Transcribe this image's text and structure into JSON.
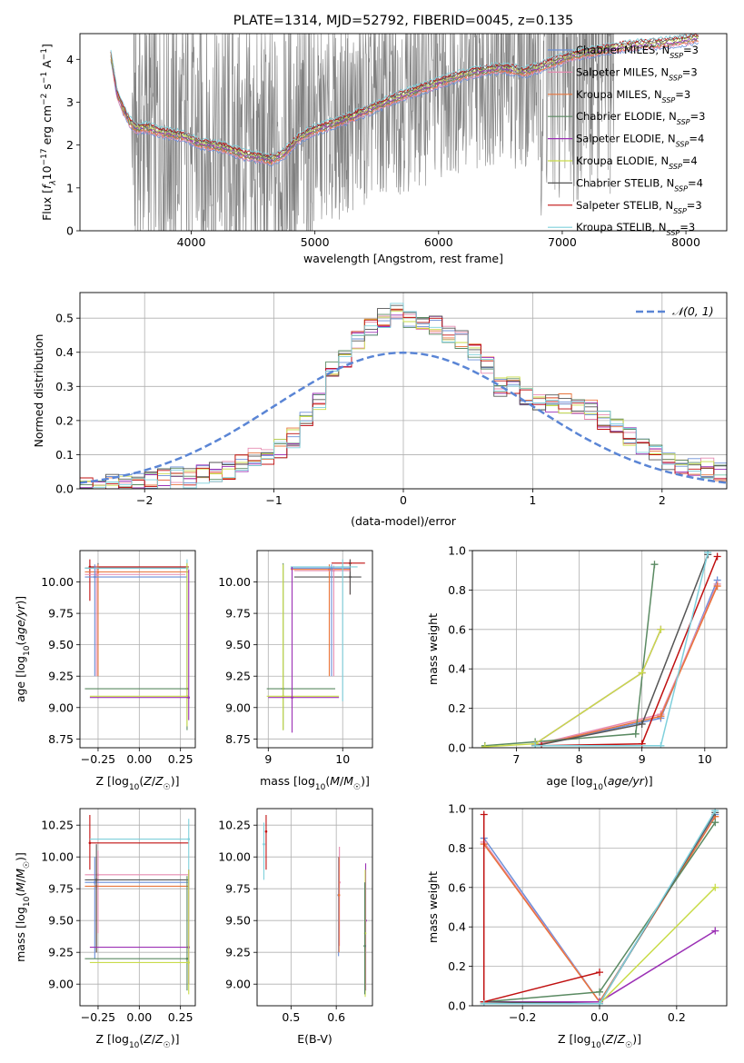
{
  "colors": {
    "Chabrier MILES": "#6a8fd8",
    "Salpeter MILES": "#e68bb1",
    "Kroupa MILES": "#e8743b",
    "Chabrier ELODIE": "#5a8a62",
    "Salpeter ELODIE": "#9b30b5",
    "Kroupa ELODIE": "#c9dc4a",
    "Chabrier STELIB": "#555555",
    "Salpeter STELIB": "#c01010",
    "Kroupa STELIB": "#7fd0dc",
    "data": "#808080",
    "normal": "#5a85d5"
  },
  "chart_data": [
    {
      "id": "spectrum",
      "type": "line",
      "title": "PLATE=1314, MJD=52792, FIBERID=0045, z=0.135",
      "xlabel": "wavelength [Angstrom, rest frame]",
      "ylabel": "Flux [f_λ 10^-17 erg cm^-2 s^-1 A^-1]",
      "xlim": [
        3100,
        8330
      ],
      "ylim": [
        0,
        4.6
      ],
      "xticks": [
        4000,
        5000,
        6000,
        7000,
        8000
      ],
      "yticks": [
        0,
        1,
        2,
        3,
        4
      ],
      "legend_position": "upper right",
      "legend": [
        {
          "model": "Chabrier MILES",
          "base": "Chabrier MILES, N",
          "sub": "SSP",
          "tail": "=3"
        },
        {
          "model": "Salpeter MILES",
          "base": "Salpeter MILES, N",
          "sub": "SSP",
          "tail": "=3"
        },
        {
          "model": "Kroupa MILES",
          "base": "Kroupa MILES, N",
          "sub": "SSP",
          "tail": "=3"
        },
        {
          "model": "Chabrier ELODIE",
          "base": "Chabrier ELODIE, N",
          "sub": "SSP",
          "tail": "=3"
        },
        {
          "model": "Salpeter ELODIE",
          "base": "Salpeter ELODIE, N",
          "sub": "SSP",
          "tail": "=4"
        },
        {
          "model": "Kroupa ELODIE",
          "base": "Kroupa ELODIE, N",
          "sub": "SSP",
          "tail": "=4"
        },
        {
          "model": "Chabrier STELIB",
          "base": "Chabrier STELIB, N",
          "sub": "SSP",
          "tail": "=4"
        },
        {
          "model": "Salpeter STELIB",
          "base": "Salpeter STELIB, N",
          "sub": "SSP",
          "tail": "=3"
        },
        {
          "model": "Kroupa STELIB",
          "base": "Kroupa STELIB, N",
          "sub": "SSP",
          "tail": "=3"
        }
      ],
      "model_continuum": {
        "x": [
          3350,
          3400,
          3450,
          3500,
          3550,
          3650,
          3750,
          3850,
          3950,
          4050,
          4150,
          4250,
          4350,
          4450,
          4550,
          4650,
          4750,
          4850,
          4950,
          5050,
          5150,
          5300,
          5500,
          5700,
          5900,
          6100,
          6300,
          6500,
          6700,
          6900,
          7100,
          7300,
          7500,
          7700,
          7900,
          8100
        ],
        "y": [
          4.1,
          3.2,
          2.85,
          2.55,
          2.4,
          2.4,
          2.3,
          2.25,
          2.2,
          2.05,
          2.0,
          1.95,
          1.85,
          1.75,
          1.72,
          1.65,
          1.8,
          2.1,
          2.3,
          2.4,
          2.5,
          2.65,
          2.9,
          3.15,
          3.35,
          3.55,
          3.7,
          3.8,
          3.7,
          3.9,
          4.1,
          4.2,
          4.3,
          4.35,
          4.4,
          4.5
        ]
      }
    },
    {
      "id": "residuals",
      "type": "line",
      "xlabel": "(data-model)/error",
      "ylabel": "Normed distribution",
      "xlim": [
        -2.5,
        2.5
      ],
      "ylim": [
        0,
        0.575
      ],
      "xticks": [
        -2,
        -1,
        0,
        1,
        2
      ],
      "yticks": [
        0.0,
        0.1,
        0.2,
        0.3,
        0.4,
        0.5
      ],
      "legend_position": "upper right",
      "legend_label": "𝒩(0, 1)",
      "hist_bin_width": 0.1,
      "hist_left": -2.5,
      "hist_values": [
        0.01,
        0.01,
        0.015,
        0.02,
        0.02,
        0.025,
        0.03,
        0.035,
        0.03,
        0.04,
        0.05,
        0.055,
        0.07,
        0.09,
        0.1,
        0.12,
        0.15,
        0.2,
        0.26,
        0.35,
        0.38,
        0.44,
        0.47,
        0.5,
        0.52,
        0.5,
        0.49,
        0.48,
        0.45,
        0.44,
        0.4,
        0.36,
        0.3,
        0.3,
        0.27,
        0.26,
        0.25,
        0.25,
        0.25,
        0.23,
        0.2,
        0.18,
        0.15,
        0.12,
        0.1,
        0.08,
        0.07,
        0.06,
        0.06,
        0.05
      ]
    },
    {
      "id": "age-vs-Z",
      "type": "scatter",
      "xlabel": "Z [log10(Z/Z☉)]",
      "ylabel": "age  [log10(age/yr)]",
      "xlim": [
        -0.36,
        0.34
      ],
      "ylim": [
        8.68,
        10.25
      ],
      "xticks": [
        "-0.25",
        "0.00",
        "0.25"
      ],
      "yticks": [
        "8.75",
        "9.00",
        "9.25",
        "9.50",
        "9.75",
        "10.00"
      ]
    },
    {
      "id": "age-vs-mass",
      "type": "scatter",
      "xlabel": "mass [log10(M/M☉)]",
      "ylabel": "",
      "xlim": [
        8.85,
        10.4
      ],
      "ylim": [
        8.68,
        10.25
      ],
      "xticks": [
        "9",
        "10"
      ],
      "yticks": [
        "8.75",
        "9.00",
        "9.25",
        "9.50",
        "9.75",
        "10.00"
      ]
    },
    {
      "id": "weight-vs-age",
      "type": "line",
      "xlabel": "age  [log10(age/yr)]",
      "ylabel": "mass weight",
      "xlim": [
        6.3,
        10.35
      ],
      "ylim": [
        0,
        1.0
      ],
      "xticks": [
        7,
        8,
        9,
        10
      ],
      "yticks": [
        "0.0",
        "0.2",
        "0.4",
        "0.6",
        "0.8",
        "1.0"
      ],
      "series": [
        {
          "model": "Chabrier MILES",
          "x": [
            7.3,
            9.3,
            10.2
          ],
          "y": [
            0.01,
            0.15,
            0.85
          ]
        },
        {
          "model": "Salpeter MILES",
          "x": [
            7.3,
            9.3,
            10.2
          ],
          "y": [
            0.015,
            0.17,
            0.83
          ]
        },
        {
          "model": "Kroupa MILES",
          "x": [
            7.3,
            9.3,
            10.2
          ],
          "y": [
            0.01,
            0.16,
            0.82
          ]
        },
        {
          "model": "Chabrier ELODIE",
          "x": [
            6.5,
            7.3,
            8.9,
            9.2
          ],
          "y": [
            0.01,
            0.03,
            0.07,
            0.93
          ]
        },
        {
          "model": "Salpeter ELODIE",
          "x": [
            7.3,
            9.0,
            9.3
          ],
          "y": [
            0.02,
            0.38,
            0.6
          ]
        },
        {
          "model": "Kroupa ELODIE",
          "x": [
            6.5,
            7.3,
            9.0,
            9.3
          ],
          "y": [
            0.005,
            0.02,
            0.38,
            0.6
          ]
        },
        {
          "model": "Chabrier STELIB",
          "x": [
            7.3,
            9.0,
            10.05
          ],
          "y": [
            0.01,
            0.12,
            0.98
          ]
        },
        {
          "model": "Salpeter STELIB",
          "x": [
            7.4,
            9.0,
            10.2
          ],
          "y": [
            0.01,
            0.02,
            0.97
          ]
        },
        {
          "model": "Kroupa STELIB",
          "x": [
            7.3,
            9.3,
            10.05
          ],
          "y": [
            0.01,
            0.01,
            0.99
          ]
        }
      ]
    },
    {
      "id": "mass-vs-Z",
      "type": "scatter",
      "xlabel": "Z [log10(Z/Z☉)]",
      "ylabel": "mass [log10(M/M☉)]",
      "xlim": [
        -0.36,
        0.34
      ],
      "ylim": [
        8.83,
        10.38
      ],
      "xticks": [
        "-0.25",
        "0.00",
        "0.25"
      ],
      "yticks": [
        "9.00",
        "9.25",
        "9.50",
        "9.75",
        "10.00",
        "10.25"
      ]
    },
    {
      "id": "mass-vs-ebv",
      "type": "scatter",
      "xlabel": "E(B-V)",
      "ylabel": "",
      "xlim": [
        0.425,
        0.68
      ],
      "ylim": [
        8.83,
        10.38
      ],
      "xticks": [
        "0.5",
        "0.6"
      ],
      "yticks": [
        "9.00",
        "9.25",
        "9.50",
        "9.75",
        "10.00",
        "10.25"
      ]
    },
    {
      "id": "weight-vs-Z",
      "type": "line",
      "xlabel": "Z [log10(Z/Z☉)]",
      "ylabel": "mass weight",
      "xlim": [
        -0.33,
        0.33
      ],
      "ylim": [
        0,
        1.0
      ],
      "xticks": [
        "-0.2",
        "0.0",
        "0.2"
      ],
      "yticks": [
        "0.0",
        "0.2",
        "0.4",
        "0.6",
        "0.8",
        "1.0"
      ],
      "series": [
        {
          "model": "Chabrier MILES",
          "x": [
            -0.3,
            0.0,
            0.3
          ],
          "y": [
            0.85,
            0.02,
            0.97
          ]
        },
        {
          "model": "Salpeter MILES",
          "x": [
            -0.3,
            0.0,
            0.3
          ],
          "y": [
            0.83,
            0.02,
            0.96
          ]
        },
        {
          "model": "Kroupa MILES",
          "x": [
            -0.3,
            0.0,
            0.3
          ],
          "y": [
            0.82,
            0.02,
            0.96
          ]
        },
        {
          "model": "Chabrier ELODIE",
          "x": [
            -0.3,
            0.0,
            0.3
          ],
          "y": [
            0.02,
            0.07,
            0.93
          ]
        },
        {
          "model": "Salpeter ELODIE",
          "x": [
            -0.3,
            0.0,
            0.3
          ],
          "y": [
            0.02,
            0.02,
            0.38
          ]
        },
        {
          "model": "Kroupa ELODIE",
          "x": [
            -0.3,
            0.0,
            0.3
          ],
          "y": [
            0.01,
            0.01,
            0.6
          ]
        },
        {
          "model": "Chabrier STELIB",
          "x": [
            -0.3,
            0.0,
            0.3
          ],
          "y": [
            0.02,
            0.01,
            0.98
          ]
        },
        {
          "model": "Salpeter STELIB",
          "x": [
            -0.3,
            -0.3,
            0.0
          ],
          "y": [
            0.97,
            0.02,
            0.17
          ]
        },
        {
          "model": "Kroupa STELIB",
          "x": [
            -0.3,
            0.0,
            0.3
          ],
          "y": [
            0.01,
            0.01,
            0.99
          ]
        }
      ]
    }
  ]
}
